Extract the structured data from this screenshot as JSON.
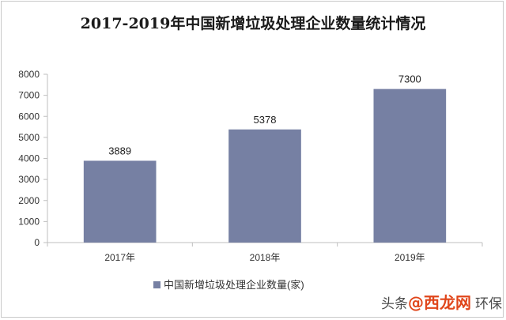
{
  "chart_data": {
    "type": "bar",
    "title": "2017-2019年中国新增垃圾处理企业数量统计情况",
    "categories": [
      "2017年",
      "2018年",
      "2019年"
    ],
    "series": [
      {
        "name": "中国新增垃圾处理企业数量(家)",
        "values": [
          3889,
          5378,
          7300
        ],
        "color": "#7680a3"
      }
    ],
    "ylim": [
      0,
      8000
    ],
    "yticks": [
      0,
      1000,
      2000,
      3000,
      4000,
      5000,
      6000,
      7000,
      8000
    ],
    "grid": false,
    "legend": "bottom",
    "xlabel": "",
    "ylabel": ""
  },
  "watermark": {
    "prefix": "头条",
    "brand": "@西龙网",
    "suffix": "环保"
  }
}
